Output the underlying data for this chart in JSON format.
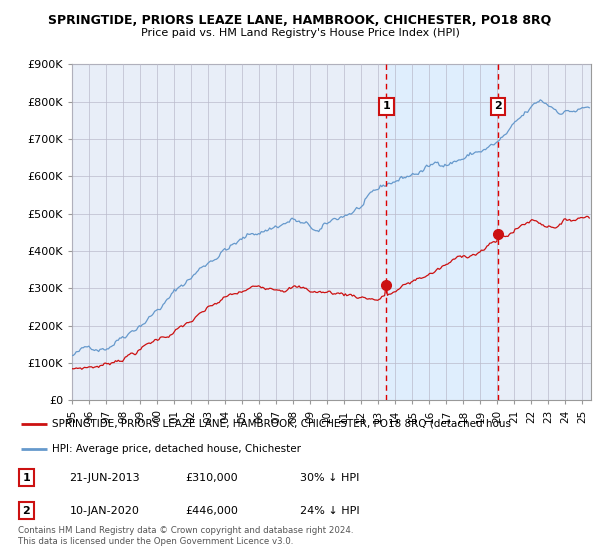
{
  "title": "SPRINGTIDE, PRIORS LEAZE LANE, HAMBROOK, CHICHESTER, PO18 8RQ",
  "subtitle": "Price paid vs. HM Land Registry's House Price Index (HPI)",
  "ylim": [
    0,
    900000
  ],
  "yticks": [
    0,
    100000,
    200000,
    300000,
    400000,
    500000,
    600000,
    700000,
    800000,
    900000
  ],
  "ytick_labels": [
    "£0",
    "£100K",
    "£200K",
    "£300K",
    "£400K",
    "£500K",
    "£600K",
    "£700K",
    "£800K",
    "£900K"
  ],
  "hpi_color": "#6699cc",
  "price_color": "#cc1111",
  "vline_color": "#dd0000",
  "bg_color": "#e8eef8",
  "shade_color": "#ddeeff",
  "grid_color": "#bbbbcc",
  "sale1_date": 2013.47,
  "sale1_price": 310000,
  "sale2_date": 2020.03,
  "sale2_price": 446000,
  "legend_label1": "SPRINGTIDE, PRIORS LEAZE LANE, HAMBROOK, CHICHESTER, PO18 8RQ (detached hous",
  "legend_label2": "HPI: Average price, detached house, Chichester",
  "table_row1": [
    "1",
    "21-JUN-2013",
    "£310,000",
    "30% ↓ HPI"
  ],
  "table_row2": [
    "2",
    "10-JAN-2020",
    "£446,000",
    "24% ↓ HPI"
  ],
  "footnote": "Contains HM Land Registry data © Crown copyright and database right 2024.\nThis data is licensed under the Open Government Licence v3.0.",
  "xmin": 1995,
  "xmax": 2025.5
}
